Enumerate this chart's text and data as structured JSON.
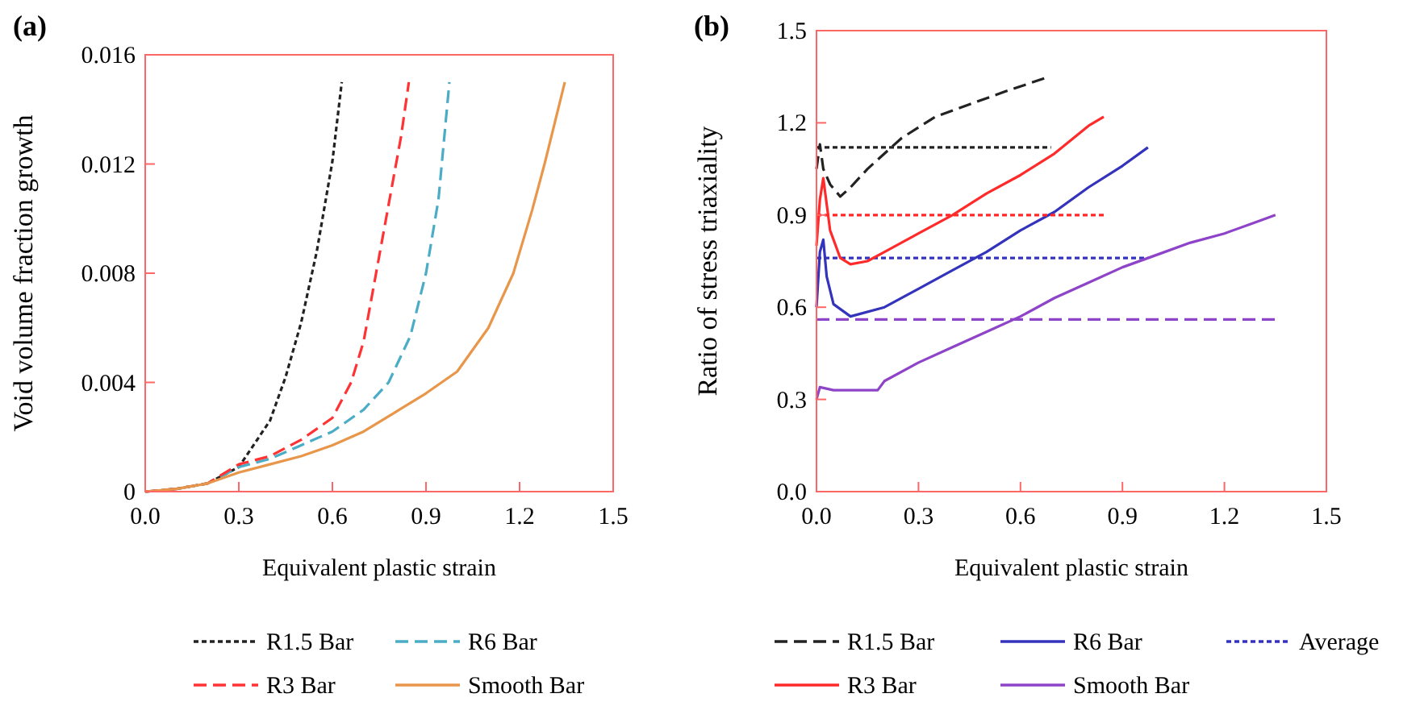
{
  "chart_data": [
    {
      "type": "line",
      "title": "(a)",
      "xlabel": "Equivalent plastic strain",
      "ylabel": "Void volume fraction growth",
      "xlim": [
        0,
        1.5
      ],
      "ylim": [
        0,
        0.016
      ],
      "xticks": [
        {
          "value": 0,
          "label": "0.0"
        },
        0.3,
        0.6,
        0.9,
        1.2,
        1.5
      ],
      "yticks": [
        0,
        0.004,
        0.008,
        0.012,
        0.016
      ],
      "legend": "bottom",
      "series": [
        {
          "name": "R1.5 Bar",
          "color": "#222222",
          "line_style": "dotted",
          "x": [
            0,
            0.1,
            0.2,
            0.3,
            0.4,
            0.45,
            0.5,
            0.55,
            0.6,
            0.63
          ],
          "values": [
            0,
            0.0001,
            0.0003,
            0.0009,
            0.0026,
            0.0042,
            0.0062,
            0.0088,
            0.0121,
            0.015
          ]
        },
        {
          "name": "R6 Bar",
          "color": "#4bacc6",
          "line_style": "dashed",
          "x": [
            0,
            0.1,
            0.2,
            0.3,
            0.4,
            0.5,
            0.6,
            0.7,
            0.78,
            0.85,
            0.9,
            0.94,
            0.975
          ],
          "values": [
            0,
            0.0001,
            0.0003,
            0.0009,
            0.0012,
            0.0017,
            0.0022,
            0.003,
            0.004,
            0.0057,
            0.008,
            0.0107,
            0.015
          ]
        },
        {
          "name": "R3 Bar",
          "color": "#ff3333",
          "line_style": "dashed",
          "x": [
            0,
            0.1,
            0.2,
            0.3,
            0.4,
            0.5,
            0.6,
            0.66,
            0.7,
            0.74,
            0.78,
            0.82,
            0.845
          ],
          "values": [
            0,
            0.0001,
            0.0003,
            0.001,
            0.0013,
            0.0019,
            0.0027,
            0.004,
            0.0055,
            0.008,
            0.0105,
            0.013,
            0.015
          ]
        },
        {
          "name": "Smooth Bar",
          "color": "#e8964a",
          "line_style": "solid",
          "x": [
            0,
            0.1,
            0.2,
            0.3,
            0.4,
            0.5,
            0.6,
            0.7,
            0.8,
            0.9,
            1.0,
            1.1,
            1.18,
            1.24,
            1.28,
            1.345
          ],
          "values": [
            0,
            0.0001,
            0.0003,
            0.0007,
            0.001,
            0.0013,
            0.0017,
            0.0022,
            0.0029,
            0.0036,
            0.0044,
            0.006,
            0.008,
            0.0103,
            0.012,
            0.015
          ]
        }
      ]
    },
    {
      "type": "line",
      "title": "(b)",
      "xlabel": "Equivalent plastic strain",
      "ylabel": "Ratio of stress triaxiality",
      "xlim": [
        0,
        1.5
      ],
      "ylim": [
        0,
        1.5
      ],
      "xticks": [
        {
          "value": 0,
          "label": "0.0"
        },
        0.3,
        0.6,
        0.9,
        1.2,
        1.5
      ],
      "yticks": [
        {
          "value": 0,
          "label": "0.0"
        },
        0.3,
        0.6,
        0.9,
        1.2,
        1.5
      ],
      "legend": "bottom",
      "series": [
        {
          "name": "R1.5 Bar",
          "color": "#222222",
          "line_style": "dashed",
          "x": [
            0,
            0.01,
            0.02,
            0.04,
            0.07,
            0.1,
            0.15,
            0.2,
            0.25,
            0.35,
            0.45,
            0.55,
            0.684
          ],
          "values": [
            1.05,
            1.13,
            1.05,
            1.0,
            0.96,
            0.99,
            1.05,
            1.1,
            1.15,
            1.22,
            1.26,
            1.3,
            1.35
          ]
        },
        {
          "name": "R6 Bar",
          "color": "#3333bb",
          "line_style": "solid",
          "x": [
            0,
            0.01,
            0.02,
            0.03,
            0.05,
            0.1,
            0.2,
            0.3,
            0.4,
            0.5,
            0.6,
            0.7,
            0.8,
            0.9,
            0.975
          ],
          "values": [
            0.6,
            0.78,
            0.82,
            0.7,
            0.61,
            0.57,
            0.6,
            0.66,
            0.72,
            0.78,
            0.85,
            0.91,
            0.99,
            1.06,
            1.12
          ]
        },
        {
          "name": "Average",
          "color": "#3333bb",
          "line_style": "dotted",
          "x": [
            0,
            0.975
          ],
          "values": [
            0.76,
            0.76
          ]
        },
        {
          "name": "R3 Bar",
          "color": "#ff2a2a",
          "line_style": "solid",
          "x": [
            0,
            0.01,
            0.02,
            0.04,
            0.07,
            0.1,
            0.15,
            0.2,
            0.3,
            0.4,
            0.5,
            0.6,
            0.7,
            0.8,
            0.845
          ],
          "values": [
            0.8,
            0.95,
            1.02,
            0.85,
            0.76,
            0.74,
            0.75,
            0.78,
            0.84,
            0.9,
            0.97,
            1.03,
            1.1,
            1.19,
            1.22
          ]
        },
        {
          "name": "Smooth Bar",
          "color": "#8e44c8",
          "line_style": "solid",
          "x": [
            0,
            0.01,
            0.05,
            0.1,
            0.18,
            0.2,
            0.3,
            0.4,
            0.5,
            0.6,
            0.7,
            0.8,
            0.9,
            1.0,
            1.1,
            1.2,
            1.3,
            1.35
          ],
          "values": [
            0.3,
            0.34,
            0.33,
            0.33,
            0.33,
            0.36,
            0.42,
            0.47,
            0.52,
            0.57,
            0.63,
            0.68,
            0.73,
            0.77,
            0.81,
            0.84,
            0.88,
            0.9
          ]
        },
        {
          "color": "#222222",
          "line_style": "dotted",
          "x": [
            0,
            0.69
          ],
          "values": [
            1.12,
            1.12
          ]
        },
        {
          "color": "#ff2a2a",
          "line_style": "dotted",
          "x": [
            0,
            0.845
          ],
          "values": [
            0.9,
            0.9
          ]
        },
        {
          "color": "#8e44c8",
          "line_style": "dashed",
          "x": [
            0,
            1.35
          ],
          "values": [
            0.56,
            0.56
          ]
        }
      ]
    }
  ]
}
